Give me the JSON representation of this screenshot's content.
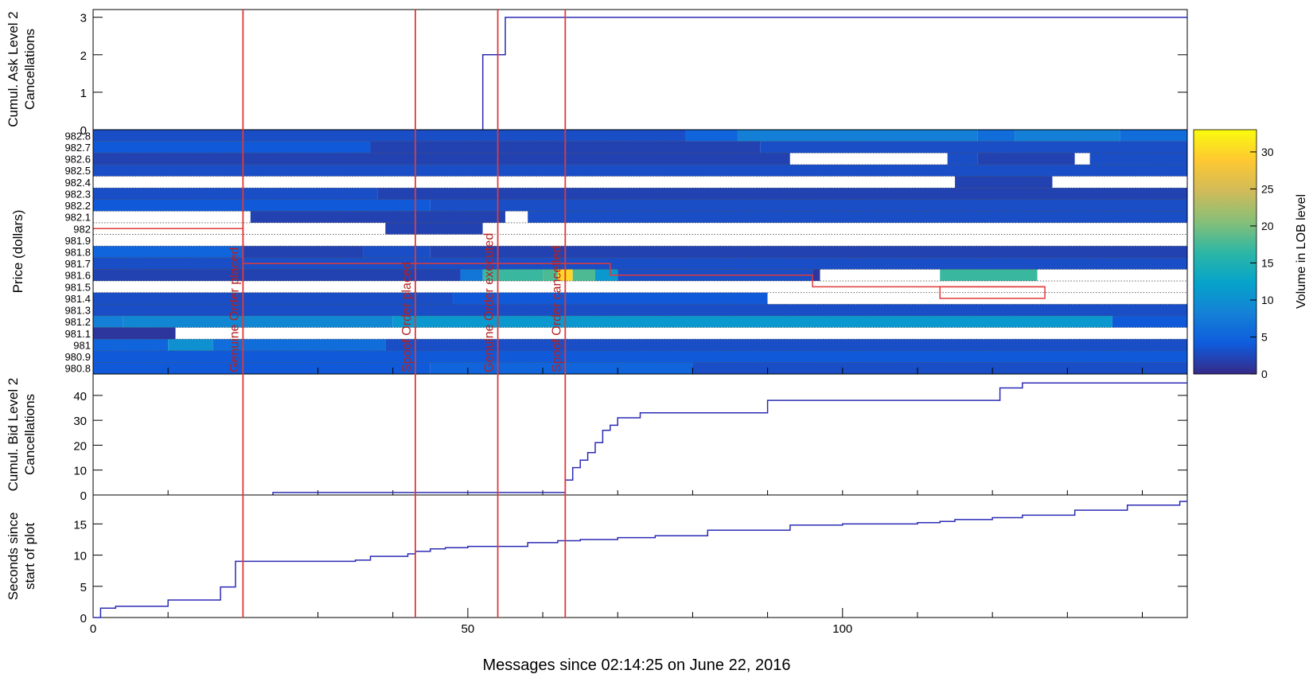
{
  "chart_data": [
    {
      "panel": "ask-cancellations",
      "type": "line",
      "ylabel_lines": [
        "Cumul. Ask Level 2",
        "Cancellations"
      ],
      "ylim": [
        0,
        3.1
      ],
      "xlim": [
        0,
        146
      ],
      "yticks": [
        0,
        1,
        2,
        3
      ],
      "step_x": [
        0,
        52,
        52,
        55,
        55,
        146
      ],
      "step_y": [
        0,
        0,
        2,
        2,
        3,
        3
      ],
      "line_start_x": 52,
      "colors": {
        "line": "#2b2bb5"
      }
    },
    {
      "panel": "lob-heatmap",
      "type": "heatmap",
      "ylabel": "Price (dollars)",
      "price_levels": [
        "982.8",
        "982.7",
        "982.6",
        "982.5",
        "982.4",
        "982.3",
        "982.2",
        "982.1",
        "982",
        "981.9",
        "981.8",
        "981.7",
        "981.6",
        "981.5",
        "981.4",
        "981.3",
        "981.2",
        "981.1",
        "981",
        "980.9",
        "980.8"
      ],
      "price_values": [
        982.8,
        982.7,
        982.6,
        982.5,
        982.4,
        982.3,
        982.2,
        982.1,
        982.0,
        981.9,
        981.8,
        981.7,
        981.6,
        981.5,
        981.4,
        981.3,
        981.2,
        981.1,
        981.0,
        980.9,
        980.8
      ],
      "xlim": [
        0,
        146
      ],
      "colorbar": {
        "label": "Volume in LOB level",
        "min": 0,
        "max": 33,
        "ticks": [
          0,
          5,
          10,
          15,
          20,
          25,
          30
        ]
      },
      "cells": [
        [
          [
            0,
            79,
            3
          ],
          [
            79,
            86,
            5
          ],
          [
            86,
            118,
            8
          ],
          [
            118,
            123,
            6
          ],
          [
            123,
            137,
            8
          ],
          [
            137,
            146,
            6
          ]
        ],
        [
          [
            0,
            37,
            4
          ],
          [
            37,
            89,
            2
          ],
          [
            89,
            146,
            3
          ]
        ],
        [
          [
            0,
            93,
            2
          ],
          [
            93,
            114,
            null
          ],
          [
            114,
            118,
            3
          ],
          [
            118,
            131,
            2
          ],
          [
            131,
            133,
            null
          ],
          [
            133,
            146,
            3
          ]
        ],
        [
          [
            0,
            146,
            3
          ]
        ],
        [
          [
            0,
            115,
            null
          ],
          [
            115,
            128,
            2
          ],
          [
            128,
            146,
            null
          ]
        ],
        [
          [
            0,
            38,
            3
          ],
          [
            38,
            146,
            2
          ]
        ],
        [
          [
            0,
            45,
            4
          ],
          [
            45,
            146,
            3
          ]
        ],
        [
          [
            0,
            21,
            null
          ],
          [
            21,
            55,
            2
          ],
          [
            55,
            58,
            null
          ],
          [
            58,
            146,
            3
          ]
        ],
        [
          [
            0,
            39,
            null
          ],
          [
            39,
            52,
            2
          ],
          [
            52,
            146,
            null
          ]
        ],
        [
          [
            0,
            146,
            null
          ]
        ],
        [
          [
            0,
            20,
            5
          ],
          [
            20,
            36,
            2
          ],
          [
            36,
            45,
            3
          ],
          [
            45,
            146,
            2
          ]
        ],
        [
          [
            0,
            146,
            3
          ]
        ],
        [
          [
            0,
            49,
            2
          ],
          [
            49,
            52,
            7
          ],
          [
            52,
            60,
            17
          ],
          [
            60,
            62,
            18
          ],
          [
            62,
            64,
            30
          ],
          [
            64,
            67,
            18
          ],
          [
            67,
            70,
            11
          ],
          [
            70,
            96,
            3
          ],
          [
            96,
            97,
            1
          ],
          [
            97,
            113,
            null
          ],
          [
            113,
            126,
            17
          ],
          [
            126,
            146,
            null
          ]
        ],
        [
          [
            0,
            146,
            null
          ]
        ],
        [
          [
            0,
            48,
            3
          ],
          [
            48,
            90,
            4
          ],
          [
            90,
            146,
            null
          ]
        ],
        [
          [
            0,
            146,
            3
          ]
        ],
        [
          [
            0,
            4,
            8
          ],
          [
            4,
            40,
            9
          ],
          [
            40,
            136,
            11
          ],
          [
            136,
            146,
            4
          ]
        ],
        [
          [
            0,
            11,
            1
          ],
          [
            11,
            146,
            null
          ]
        ],
        [
          [
            0,
            10,
            5
          ],
          [
            10,
            16,
            10
          ],
          [
            16,
            39,
            6
          ],
          [
            39,
            146,
            3
          ]
        ],
        [
          [
            0,
            146,
            4
          ]
        ],
        [
          [
            0,
            45,
            4
          ],
          [
            45,
            80,
            5
          ],
          [
            80,
            146,
            3
          ]
        ]
      ],
      "spoof_outline": [
        [
          0,
          982.0
        ],
        [
          20,
          982.0
        ],
        [
          20,
          981.7
        ],
        [
          69,
          981.7
        ],
        [
          69,
          981.6
        ],
        [
          96,
          981.6
        ],
        [
          96,
          981.5
        ],
        [
          127,
          981.5
        ]
      ],
      "genuine_box": [
        113,
        127,
        981.4,
        981.5
      ],
      "colors": {
        "outline": "#e03a3a",
        "nodata": "#ffffff"
      }
    },
    {
      "panel": "bid-cancellations",
      "type": "line",
      "ylabel_lines": [
        "Cumul. Bid Level 2",
        "Cancellations"
      ],
      "ylim": [
        0,
        47
      ],
      "xlim": [
        0,
        146
      ],
      "yticks": [
        0,
        10,
        20,
        30,
        40
      ],
      "step_x": [
        0,
        24,
        24,
        63,
        63,
        64,
        64,
        65,
        65,
        66,
        66,
        67,
        67,
        68,
        68,
        69,
        69,
        70,
        70,
        71,
        71,
        73,
        73,
        90,
        90,
        121,
        121,
        124,
        124,
        146
      ],
      "step_y": [
        0,
        0,
        1,
        1,
        6,
        6,
        11,
        11,
        14,
        14,
        17,
        17,
        21,
        21,
        26,
        26,
        28,
        28,
        31,
        31,
        31,
        31,
        33,
        33,
        38,
        38,
        43,
        43,
        45,
        45
      ],
      "colors": {
        "line": "#2b2bb5"
      }
    },
    {
      "panel": "seconds",
      "type": "line",
      "ylabel_lines": [
        "Seconds since",
        "start of plot"
      ],
      "xlabel": "Messages since 02:14:25 on June 22, 2016",
      "ylim": [
        0,
        19
      ],
      "xlim": [
        0,
        146
      ],
      "yticks": [
        0,
        5,
        10,
        15
      ],
      "xticks_major": [
        0,
        50,
        100
      ],
      "xticks_minor": [
        10,
        20,
        30,
        40,
        60,
        70,
        80,
        90,
        110,
        120,
        130,
        140
      ],
      "step_x": [
        0,
        1,
        1,
        3,
        3,
        10,
        10,
        17,
        17,
        19,
        19,
        35,
        35,
        37,
        37,
        42,
        42,
        43,
        43,
        45,
        45,
        47,
        47,
        50,
        50,
        58,
        58,
        62,
        62,
        65,
        65,
        70,
        70,
        75,
        75,
        82,
        82,
        93,
        93,
        100,
        100,
        110,
        110,
        113,
        113,
        115,
        115,
        120,
        120,
        124,
        124,
        131,
        131,
        138,
        138,
        145,
        145,
        146
      ],
      "step_y": [
        0,
        0,
        1.5,
        1.5,
        1.8,
        1.8,
        2.8,
        2.8,
        4.9,
        4.9,
        9,
        9,
        9.2,
        9.2,
        9.8,
        9.8,
        10.2,
        10.2,
        10.6,
        10.6,
        11.0,
        11.0,
        11.2,
        11.2,
        11.4,
        11.4,
        12.0,
        12.0,
        12.3,
        12.3,
        12.5,
        12.5,
        12.8,
        12.8,
        13.1,
        13.1,
        14.0,
        14.0,
        14.8,
        14.8,
        15.0,
        15.0,
        15.2,
        15.2,
        15.4,
        15.4,
        15.7,
        15.7,
        16.0,
        16.0,
        16.4,
        16.4,
        17.2,
        17.2,
        18.0,
        18.0,
        18.6,
        18.6
      ],
      "colors": {
        "line": "#2b2bb5"
      }
    }
  ],
  "events": [
    {
      "x": 20,
      "label": "Genuine Order placed"
    },
    {
      "x": 43,
      "label": "Spoof Order placed"
    },
    {
      "x": 54,
      "label": "Genuine Order executed"
    },
    {
      "x": 63,
      "label": "Spoof Order cancelled"
    }
  ],
  "event_color": "#e03a3a"
}
